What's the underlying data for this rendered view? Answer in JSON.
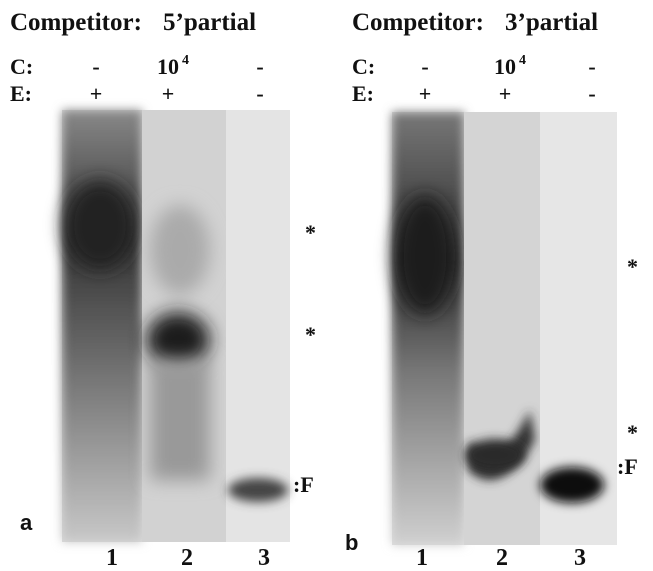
{
  "panels": [
    {
      "title": "Competitor:",
      "competitor": "5’partial",
      "rows": [
        {
          "label": "C:",
          "values": [
            "-",
            "10",
            "-"
          ]
        },
        {
          "label": "E:",
          "values": [
            "+",
            "+",
            "-"
          ]
        }
      ],
      "c_exponent": "4",
      "markers": [
        "*",
        "*",
        ":F"
      ],
      "letter": "a",
      "lanes": [
        "1",
        "2",
        "3"
      ]
    },
    {
      "title": "Competitor:",
      "competitor": "3’partial",
      "rows": [
        {
          "label": "C:",
          "values": [
            "-",
            "10",
            "-"
          ]
        },
        {
          "label": "E:",
          "values": [
            "+",
            "+",
            "-"
          ]
        }
      ],
      "c_exponent": "4",
      "markers": [
        "*",
        "*",
        ":F"
      ],
      "letter": "b",
      "lanes": [
        "1",
        "2",
        "3"
      ]
    }
  ]
}
